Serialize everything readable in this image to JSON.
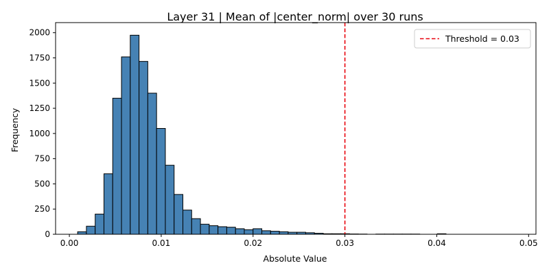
{
  "chart_data": {
    "type": "bar",
    "title": "Layer 31 | Mean of |center_norm| over 30 runs",
    "xlabel": "Absolute Value",
    "ylabel": "Frequency",
    "xlim": [
      -0.0015,
      0.0508
    ],
    "ylim": [
      0,
      2100
    ],
    "xticks": [
      0.0,
      0.01,
      0.02,
      0.03,
      0.04,
      0.05
    ],
    "xtick_labels": [
      "0.00",
      "0.01",
      "0.02",
      "0.03",
      "0.04",
      "0.05"
    ],
    "yticks": [
      0,
      250,
      500,
      750,
      1000,
      1250,
      1500,
      1750,
      2000
    ],
    "ytick_labels": [
      "0",
      "250",
      "500",
      "750",
      "1000",
      "1250",
      "1500",
      "1750",
      "2000"
    ],
    "bin_start": 0.0009,
    "bin_width": 0.000955,
    "counts": [
      25,
      80,
      200,
      600,
      1350,
      1760,
      1975,
      1715,
      1400,
      1050,
      685,
      395,
      240,
      155,
      100,
      85,
      75,
      70,
      55,
      45,
      55,
      35,
      30,
      25,
      20,
      20,
      15,
      10,
      5,
      5,
      5,
      3,
      2,
      0,
      2,
      2,
      2,
      2,
      2,
      0,
      0,
      5,
      0,
      0,
      0,
      0,
      0,
      0,
      0,
      0
    ],
    "threshold": {
      "value": 0.03,
      "label": "Threshold = 0.03",
      "color": "#e8000b"
    },
    "bar_color": "#4682b4",
    "bar_edge_color": "#000000",
    "legend_position": "top-right",
    "grid": false
  }
}
